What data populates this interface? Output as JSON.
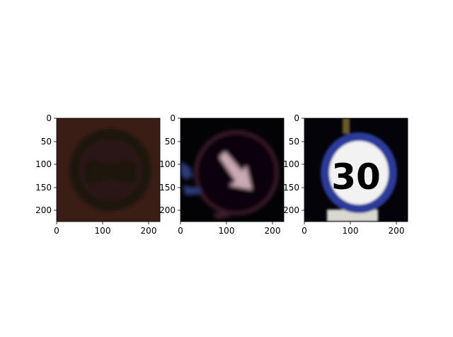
{
  "panels": [
    {
      "sign": "no-overtaking-sign-dark",
      "colors": {
        "background": "#3a1e16",
        "ring": "#1b1210",
        "fill": "#2c1812",
        "car": "#1a1211"
      },
      "x_ticks": [
        "0",
        "100",
        "200"
      ],
      "y_ticks": [
        "0",
        "50",
        "100",
        "150",
        "200"
      ]
    },
    {
      "sign": "keep-right-arrow-sign-night",
      "colors": {
        "background": "#030205",
        "arrow": "#c9a9b2",
        "disc": "#0b0409",
        "edge": "#3b1a2b",
        "glare": "#2a3a7a"
      },
      "x_ticks": [
        "0",
        "100",
        "200"
      ],
      "y_ticks": [
        "0",
        "50",
        "100",
        "150",
        "200"
      ]
    },
    {
      "sign": "speed-limit-30-sign",
      "label": "30",
      "colors": {
        "background": "#04030a",
        "ring": "#2a3a9a",
        "face": "#f2f2f2",
        "digits": "#111111",
        "pole": "#6b5a2a",
        "plate": "#d8d8d0"
      },
      "x_ticks": [
        "0",
        "100",
        "200"
      ],
      "y_ticks": [
        "0",
        "50",
        "100",
        "150",
        "200"
      ]
    }
  ]
}
